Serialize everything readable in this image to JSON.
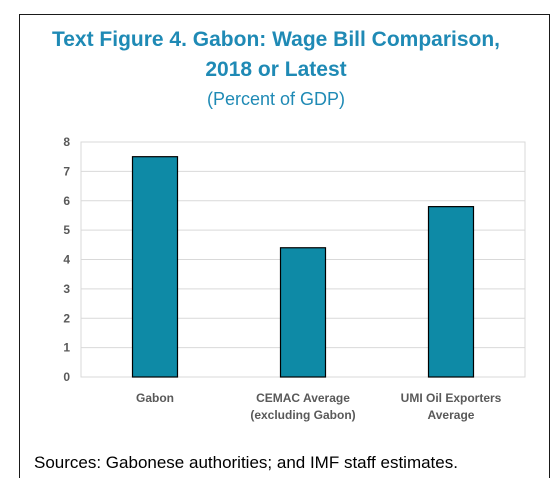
{
  "figure": {
    "title_line1": "Text Figure 4. Gabon: Wage Bill Comparison,",
    "title_line2": "2018 or Latest",
    "subtitle": "(Percent of GDP)",
    "source": "Sources: Gabonese authorities; and IMF staff estimates."
  },
  "chart_data": {
    "type": "bar",
    "categories": [
      [
        "Gabon"
      ],
      [
        "CEMAC Average",
        "(excluding Gabon)"
      ],
      [
        "UMI Oil Exporters",
        "Average"
      ]
    ],
    "values": [
      7.5,
      4.4,
      5.8
    ],
    "ylim": [
      0,
      8
    ],
    "yticks": [
      0,
      1,
      2,
      3,
      4,
      5,
      6,
      7,
      8
    ],
    "grid": true,
    "bar_color": "#0e8aa6",
    "xlabel": "",
    "ylabel": ""
  }
}
